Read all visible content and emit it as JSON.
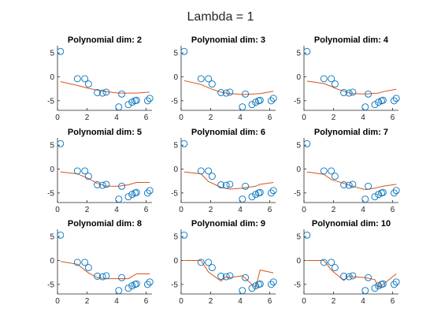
{
  "figure": {
    "title": "Lambda = 1"
  },
  "chart_data": {
    "type": "scatter",
    "shared": {
      "xlim": [
        0,
        6.4
      ],
      "ylim": [
        -7,
        6.5
      ],
      "xticks": [
        0,
        2,
        4,
        6
      ],
      "yticks": [
        -5,
        0,
        5
      ],
      "grid": false,
      "marker_color": "#0072BD",
      "fit_color": "#D95319",
      "points": {
        "x": [
          0.2,
          1.35,
          1.85,
          2.1,
          2.7,
          3.05,
          3.3,
          4.15,
          4.35,
          4.8,
          5.05,
          5.25,
          5.35,
          6.1,
          6.25
        ],
        "y": [
          5.3,
          -0.4,
          -0.4,
          -1.5,
          -3.3,
          -3.4,
          -3.2,
          -6.3,
          -3.6,
          -5.8,
          -5.3,
          -5.0,
          -4.9,
          -5.0,
          -4.5
        ]
      }
    },
    "panels": [
      {
        "title": "Polynomial dim: 2",
        "fit": {
          "x": [
            0.2,
            1.35,
            2.1,
            3.05,
            4.15,
            5.35,
            6.25
          ],
          "y": [
            -1.0,
            -1.8,
            -2.4,
            -3.0,
            -3.4,
            -3.4,
            -3.2
          ]
        }
      },
      {
        "title": "Polynomial dim: 3",
        "fit": {
          "x": [
            0.2,
            1.35,
            2.1,
            2.7,
            3.05,
            4.15,
            5.35,
            6.25
          ],
          "y": [
            -0.8,
            -1.6,
            -2.6,
            -3.2,
            -3.4,
            -3.7,
            -3.5,
            -3.0
          ]
        }
      },
      {
        "title": "Polynomial dim: 4",
        "fit": {
          "x": [
            0.2,
            1.35,
            1.85,
            2.1,
            2.7,
            3.3,
            4.15,
            5.05,
            5.35,
            6.25
          ],
          "y": [
            -0.9,
            -1.4,
            -2.0,
            -2.4,
            -3.0,
            -3.5,
            -3.6,
            -3.4,
            -3.1,
            -2.6
          ]
        }
      },
      {
        "title": "Polynomial dim: 5",
        "fit": {
          "x": [
            0.2,
            1.35,
            2.1,
            2.7,
            3.3,
            4.15,
            4.8,
            5.35,
            6.25
          ],
          "y": [
            -0.6,
            -1.0,
            -2.0,
            -3.0,
            -3.6,
            -3.6,
            -3.3,
            -2.8,
            -2.8
          ]
        }
      },
      {
        "title": "Polynomial dim: 6",
        "fit": {
          "x": [
            0.2,
            1.35,
            1.85,
            2.7,
            3.3,
            4.15,
            5.05,
            5.35,
            6.25
          ],
          "y": [
            -0.6,
            -1.0,
            -2.6,
            -3.8,
            -4.2,
            -4.0,
            -3.6,
            -3.2,
            -2.8
          ]
        }
      },
      {
        "title": "Polynomial dim: 7",
        "fit": {
          "x": [
            0.2,
            1.35,
            1.85,
            2.7,
            3.3,
            4.15,
            4.8,
            5.35,
            6.25
          ],
          "y": [
            -0.6,
            -1.1,
            -2.2,
            -3.0,
            -3.6,
            -4.3,
            -4.0,
            -3.6,
            -3.2
          ]
        }
      },
      {
        "title": "Polynomial dim: 8",
        "fit": {
          "x": [
            0.2,
            1.35,
            2.1,
            2.7,
            3.3,
            4.15,
            4.8,
            5.35,
            6.25
          ],
          "y": [
            -0.2,
            -0.8,
            -2.6,
            -3.6,
            -3.8,
            -3.8,
            -3.8,
            -2.8,
            -2.8
          ]
        }
      },
      {
        "title": "Polynomial dim: 9",
        "fit": {
          "x": [
            0.2,
            0.7,
            1.35,
            1.85,
            2.7,
            3.05,
            3.3,
            4.15,
            4.8,
            5.05,
            5.35,
            6.25
          ],
          "y": [
            0.0,
            0.0,
            0.0,
            -2.4,
            -4.3,
            -3.4,
            -3.6,
            -3.2,
            -5.0,
            -5.6,
            -2.0,
            -2.6
          ]
        }
      },
      {
        "title": "Polynomial dim: 10",
        "fit": {
          "x": [
            0.2,
            1.35,
            1.85,
            2.7,
            3.05,
            3.3,
            4.15,
            4.8,
            5.05,
            5.35,
            6.25
          ],
          "y": [
            0.0,
            0.0,
            -2.0,
            -4.2,
            -3.2,
            -3.4,
            -3.6,
            -4.0,
            -5.6,
            -5.0,
            -2.8
          ]
        }
      }
    ]
  }
}
